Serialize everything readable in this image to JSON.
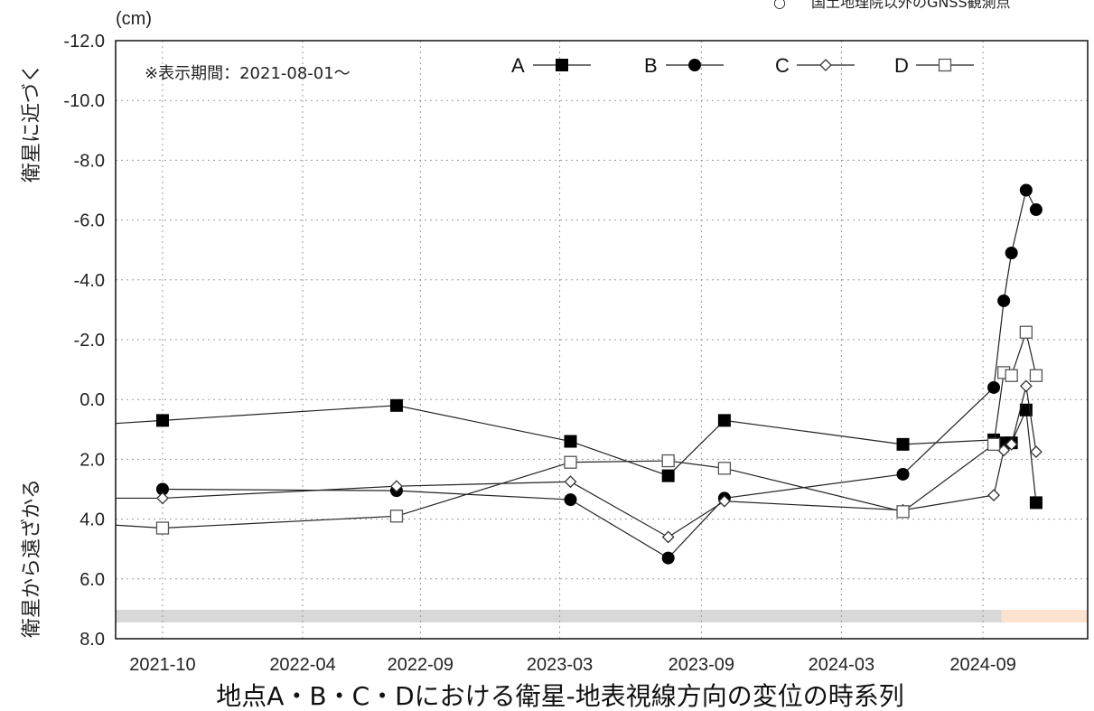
{
  "header_note": {
    "symbol": "○",
    "label": "国土地理院以外のGNSS観測点"
  },
  "annotation": "※表示期間：2021-08-01〜",
  "unit_label": "(cm)",
  "ylabel_top": "衛星に近づく",
  "ylabel_bottom": "衛星から遠ざかる",
  "caption": "地点A・B・C・Dにおける衛星-地表視線方向の変位の時系列",
  "chart_data": {
    "type": "line",
    "title": "",
    "xlabel": "",
    "ylabel": "(cm)",
    "x_range": [
      "2021-08-01",
      "2025-01-15"
    ],
    "x_ticks": [
      "2021-10",
      "2022-04",
      "2022-09",
      "2023-03",
      "2023-09",
      "2024-03",
      "2024-09"
    ],
    "ylim": [
      8.0,
      -12.0
    ],
    "y_ticks": [
      "-12.0",
      "-10.0",
      "-8.0",
      "-6.0",
      "-4.0",
      "-2.0",
      "0.0",
      "2.0",
      "4.0",
      "6.0",
      "8.0"
    ],
    "y_inverted": true,
    "grid": true,
    "legend_position": "top-right",
    "bottom_bands": [
      {
        "from": "2021-08-01",
        "to": "2024-09-25",
        "color": "#d8d8d8"
      },
      {
        "from": "2024-09-25",
        "to": "2025-01-15",
        "color": "#fde2cf"
      }
    ],
    "series": [
      {
        "name": "A",
        "marker": "filled-square",
        "points": [
          [
            "2021-08-01",
            0.8
          ],
          [
            "2021-10-01",
            0.7
          ],
          [
            "2022-08-01",
            0.2
          ],
          [
            "2023-03-15",
            1.4
          ],
          [
            "2023-07-20",
            2.55
          ],
          [
            "2023-10-01",
            0.7
          ],
          [
            "2024-05-20",
            1.5
          ],
          [
            "2024-09-15",
            1.35
          ],
          [
            "2024-09-28",
            1.45
          ],
          [
            "2024-10-08",
            1.45
          ],
          [
            "2024-10-27",
            0.35
          ],
          [
            "2024-11-09",
            3.45
          ]
        ]
      },
      {
        "name": "B",
        "marker": "filled-circle",
        "points": [
          [
            "2021-10-01",
            3.0
          ],
          [
            "2022-08-01",
            3.05
          ],
          [
            "2023-03-15",
            3.35
          ],
          [
            "2023-07-20",
            5.3
          ],
          [
            "2023-10-01",
            3.3
          ],
          [
            "2024-05-20",
            2.5
          ],
          [
            "2024-09-15",
            -0.4
          ],
          [
            "2024-09-28",
            -3.3
          ],
          [
            "2024-10-08",
            -4.9
          ],
          [
            "2024-10-27",
            -7.0
          ],
          [
            "2024-11-09",
            -6.35
          ]
        ]
      },
      {
        "name": "C",
        "marker": "open-diamond",
        "points": [
          [
            "2021-08-01",
            3.3
          ],
          [
            "2021-10-01",
            3.3
          ],
          [
            "2022-08-01",
            2.9
          ],
          [
            "2023-03-15",
            2.75
          ],
          [
            "2023-07-20",
            4.6
          ],
          [
            "2023-10-01",
            3.4
          ],
          [
            "2024-05-20",
            3.7
          ],
          [
            "2024-09-15",
            3.2
          ],
          [
            "2024-09-28",
            1.7
          ],
          [
            "2024-10-08",
            1.5
          ],
          [
            "2024-10-27",
            -0.45
          ],
          [
            "2024-11-09",
            1.75
          ]
        ]
      },
      {
        "name": "D",
        "marker": "open-square",
        "points": [
          [
            "2021-08-01",
            4.2
          ],
          [
            "2021-10-01",
            4.3
          ],
          [
            "2022-08-01",
            3.9
          ],
          [
            "2023-03-15",
            2.1
          ],
          [
            "2023-07-20",
            2.05
          ],
          [
            "2023-10-01",
            2.3
          ],
          [
            "2024-05-20",
            3.75
          ],
          [
            "2024-09-15",
            1.5
          ],
          [
            "2024-09-28",
            -0.9
          ],
          [
            "2024-10-08",
            -0.8
          ],
          [
            "2024-10-27",
            -2.25
          ],
          [
            "2024-11-09",
            -0.8
          ]
        ]
      }
    ]
  }
}
